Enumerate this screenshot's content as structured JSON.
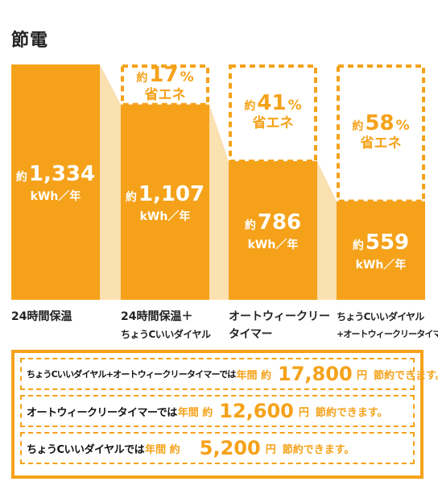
{
  "title": "節電",
  "colors": {
    "bar": "#F5A21A",
    "connector": "#FBE0B0",
    "accent": "#F5A21A"
  },
  "chart_data": {
    "type": "bar",
    "unit": "kWh／年",
    "prefix": "約",
    "categories": [
      [
        "24時間保温",
        ""
      ],
      [
        "24時間保温＋",
        "ちょうCいいダイヤル"
      ],
      [
        "オートウィークリー",
        "タイマー"
      ],
      [
        "ちょうCいいダイヤル",
        "+オートウィークリータイマー"
      ]
    ],
    "values": [
      1334,
      1107,
      786,
      559
    ],
    "value_labels": [
      "1,334",
      "1,107",
      "786",
      "559"
    ],
    "savings": [
      null,
      "17",
      "41",
      "58"
    ],
    "savings_suffix": "%",
    "savings_label": "省エネ",
    "ylim": [
      0,
      1334
    ]
  },
  "summary": {
    "rows": [
      {
        "label": "ちょうCいいダイヤル+オートウィークリータイマーでは",
        "pre": "年間 約",
        "value": "17,800",
        "unit": "円",
        "post": "節約できます。",
        "small": true
      },
      {
        "label": "オートウィークリータイマーでは",
        "pre": "年間 約",
        "value": "12,600",
        "unit": "円",
        "post": "節約できます。",
        "small": false
      },
      {
        "label": "ちょうCいいダイヤルでは",
        "pre": "年間 約",
        "value": "5,200",
        "unit": "円",
        "post": "節約できます。",
        "small": false
      }
    ]
  }
}
